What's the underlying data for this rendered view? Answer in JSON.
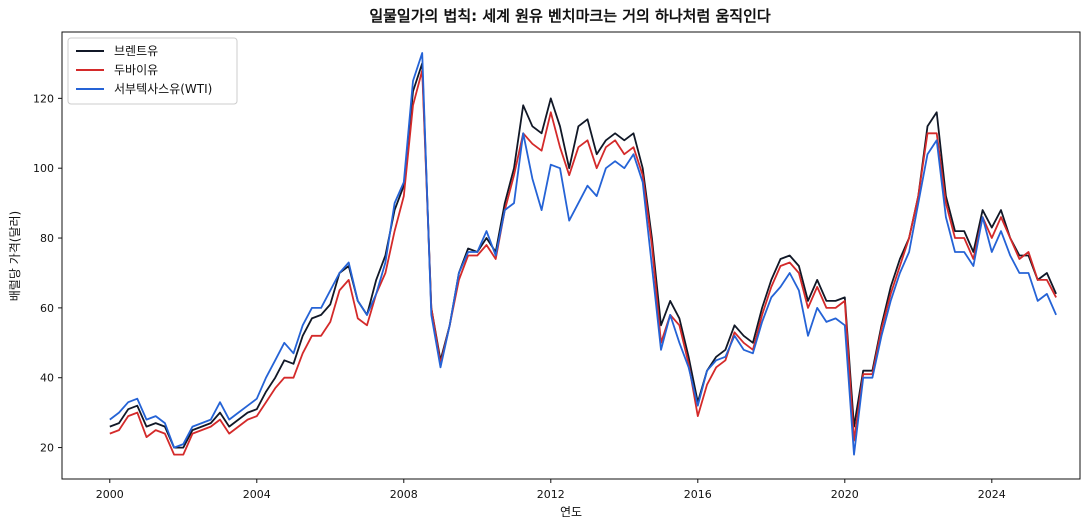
{
  "chart_data": {
    "type": "line",
    "title": "일물일가의 법칙: 세계 원유 벤치마크는 거의 하나처럼 움직인다",
    "xlabel": "연도",
    "ylabel": "배럴당 가격(달러)",
    "xlim": [
      1998.7,
      2026.4
    ],
    "ylim": [
      11,
      139
    ],
    "xticks": [
      2000,
      2004,
      2008,
      2012,
      2016,
      2020,
      2024
    ],
    "yticks": [
      20,
      40,
      60,
      80,
      100,
      120
    ],
    "grid": false,
    "legend_position": "top-left",
    "x": [
      2000.0,
      2000.25,
      2000.5,
      2000.75,
      2001.0,
      2001.25,
      2001.5,
      2001.75,
      2002.0,
      2002.25,
      2002.5,
      2002.75,
      2003.0,
      2003.25,
      2003.5,
      2003.75,
      2004.0,
      2004.25,
      2004.5,
      2004.75,
      2005.0,
      2005.25,
      2005.5,
      2005.75,
      2006.0,
      2006.25,
      2006.5,
      2006.75,
      2007.0,
      2007.25,
      2007.5,
      2007.75,
      2008.0,
      2008.25,
      2008.5,
      2008.75,
      2009.0,
      2009.25,
      2009.5,
      2009.75,
      2010.0,
      2010.25,
      2010.5,
      2010.75,
      2011.0,
      2011.25,
      2011.5,
      2011.75,
      2012.0,
      2012.25,
      2012.5,
      2012.75,
      2013.0,
      2013.25,
      2013.5,
      2013.75,
      2014.0,
      2014.25,
      2014.5,
      2014.75,
      2015.0,
      2015.25,
      2015.5,
      2015.75,
      2016.0,
      2016.25,
      2016.5,
      2016.75,
      2017.0,
      2017.25,
      2017.5,
      2017.75,
      2018.0,
      2018.25,
      2018.5,
      2018.75,
      2019.0,
      2019.25,
      2019.5,
      2019.75,
      2020.0,
      2020.25,
      2020.5,
      2020.75,
      2021.0,
      2021.25,
      2021.5,
      2021.75,
      2022.0,
      2022.25,
      2022.5,
      2022.75,
      2023.0,
      2023.25,
      2023.5,
      2023.75,
      2024.0,
      2024.25,
      2024.5,
      2024.75,
      2025.0,
      2025.25,
      2025.5,
      2025.75
    ],
    "series": [
      {
        "name": "브렌트유",
        "color": "#111827",
        "values": [
          26,
          27,
          31,
          32,
          26,
          27,
          26,
          20,
          20,
          25,
          26,
          27,
          30,
          26,
          28,
          30,
          31,
          36,
          40,
          45,
          44,
          52,
          57,
          58,
          61,
          70,
          72,
          62,
          58,
          68,
          75,
          88,
          95,
          122,
          130,
          60,
          45,
          55,
          70,
          77,
          76,
          80,
          76,
          90,
          100,
          118,
          112,
          110,
          120,
          112,
          100,
          112,
          114,
          104,
          108,
          110,
          108,
          110,
          100,
          80,
          55,
          62,
          57,
          46,
          33,
          42,
          46,
          48,
          55,
          52,
          50,
          60,
          68,
          74,
          75,
          72,
          62,
          68,
          62,
          62,
          63,
          26,
          42,
          42,
          55,
          66,
          74,
          80,
          92,
          112,
          116,
          92,
          82,
          82,
          76,
          88,
          83,
          88,
          80,
          75,
          75,
          68,
          70,
          64
        ]
      },
      {
        "name": "두바이유",
        "color": "#d42a2a",
        "values": [
          24,
          25,
          29,
          30,
          23,
          25,
          24,
          18,
          18,
          24,
          25,
          26,
          28,
          24,
          26,
          28,
          29,
          33,
          37,
          40,
          40,
          47,
          52,
          52,
          56,
          65,
          68,
          57,
          55,
          64,
          70,
          82,
          92,
          118,
          128,
          60,
          44,
          55,
          68,
          75,
          75,
          78,
          74,
          88,
          98,
          110,
          107,
          105,
          116,
          106,
          98,
          106,
          108,
          100,
          106,
          108,
          104,
          106,
          98,
          78,
          50,
          58,
          55,
          44,
          29,
          38,
          43,
          45,
          53,
          50,
          48,
          58,
          66,
          72,
          73,
          70,
          60,
          66,
          60,
          60,
          62,
          22,
          41,
          41,
          54,
          64,
          72,
          80,
          92,
          110,
          110,
          90,
          80,
          80,
          74,
          86,
          80,
          86,
          80,
          74,
          76,
          68,
          68,
          63
        ]
      },
      {
        "name": "서부텍사스유(WTI)",
        "color": "#2563d6",
        "values": [
          28,
          30,
          33,
          34,
          28,
          29,
          27,
          20,
          21,
          26,
          27,
          28,
          33,
          28,
          30,
          32,
          34,
          40,
          45,
          50,
          47,
          55,
          60,
          60,
          65,
          70,
          73,
          62,
          58,
          64,
          73,
          90,
          96,
          125,
          133,
          58,
          43,
          55,
          70,
          76,
          76,
          82,
          75,
          88,
          90,
          110,
          97,
          88,
          101,
          100,
          85,
          90,
          95,
          92,
          100,
          102,
          100,
          104,
          96,
          72,
          48,
          58,
          50,
          43,
          32,
          42,
          45,
          46,
          52,
          48,
          47,
          56,
          63,
          66,
          70,
          65,
          52,
          60,
          56,
          57,
          55,
          18,
          40,
          40,
          52,
          62,
          70,
          76,
          90,
          104,
          108,
          86,
          76,
          76,
          72,
          86,
          76,
          82,
          75,
          70,
          70,
          62,
          64,
          58
        ]
      }
    ]
  }
}
